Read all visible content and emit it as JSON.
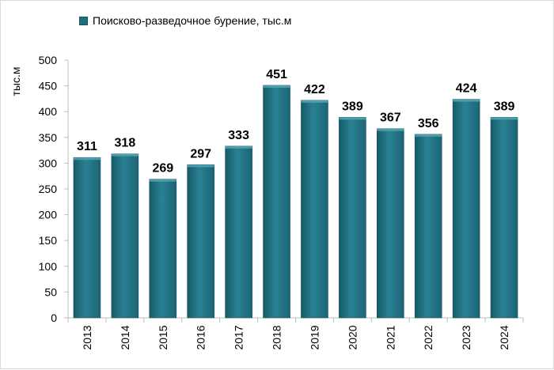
{
  "chart_data": {
    "type": "bar",
    "categories": [
      "2013",
      "2014",
      "2015",
      "2016",
      "2017",
      "2018",
      "2019",
      "2020",
      "2021",
      "2022",
      "2023",
      "2024"
    ],
    "series": [
      {
        "name": "Поисково-разведочное бурение, тыс.м",
        "values": [
          311,
          318,
          269,
          297,
          333,
          451,
          422,
          389,
          367,
          356,
          424,
          389
        ]
      }
    ],
    "ylabel": "тыс.м",
    "xlabel": "",
    "ylim": [
      0,
      500
    ],
    "yticks": [
      "0",
      "50",
      "100",
      "150",
      "200",
      "250",
      "300",
      "350",
      "400",
      "450",
      "500"
    ],
    "grid": false,
    "legend_position": "top-left",
    "colors": {
      "bar": "#1f6f80",
      "bar_light": "#3d8fa0",
      "bar_dark": "#175a68",
      "axis": "#bfbfbf"
    }
  }
}
